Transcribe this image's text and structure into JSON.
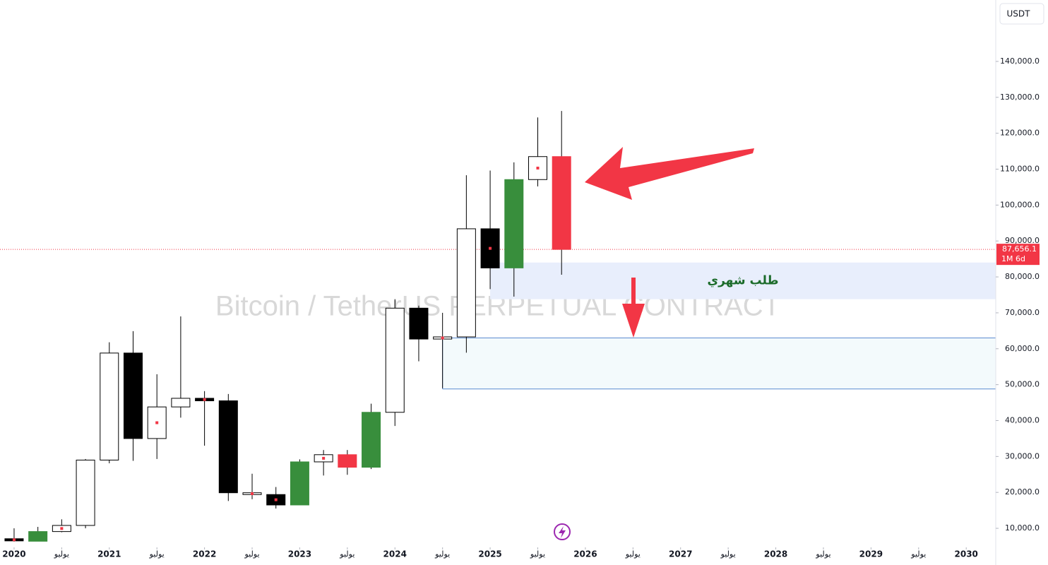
{
  "chart_data": {
    "type": "candlestick",
    "title": "Bitcoin / TetherUS PERPETUAL CONTRACT",
    "currency": "USDT",
    "x": [
      2020,
      2020.25,
      2020.5,
      2020.75,
      2021,
      2021.25,
      2021.5,
      2021.75,
      2022,
      2022.25,
      2022.5,
      2022.75,
      2023,
      2023.25,
      2023.5,
      2023.75,
      2024,
      2024.25,
      2024.5,
      2024.75,
      2025,
      2025.25,
      2025.5,
      2025.75
    ],
    "open": [
      6500,
      6400,
      9100,
      10800,
      29000,
      58800,
      35000,
      43800,
      46200,
      45500,
      19900,
      19400,
      16500,
      28500,
      30500,
      27000,
      42300,
      71300,
      62700,
      63300,
      93400,
      82500,
      107100,
      113500
    ],
    "high": [
      10000,
      10400,
      12500,
      29300,
      61800,
      64900,
      52900,
      69000,
      48200,
      47400,
      25200,
      21500,
      29200,
      31800,
      31800,
      44700,
      73800,
      72000,
      70000,
      108300,
      109600,
      111900,
      124400,
      126200
    ],
    "low": [
      6300,
      6400,
      8900,
      10000,
      28100,
      28800,
      29300,
      40800,
      33000,
      17600,
      18100,
      15500,
      16500,
      24700,
      24900,
      26500,
      38500,
      56500,
      49000,
      58900,
      76600,
      74500,
      105200,
      80600
    ],
    "close": [
      7100,
      9100,
      10800,
      29000,
      58800,
      35000,
      43800,
      46200,
      45500,
      19900,
      19400,
      16500,
      28500,
      30500,
      27000,
      42300,
      71300,
      62700,
      63300,
      93400,
      82500,
      107100,
      113500,
      87656.1
    ],
    "colors": [
      "#000000",
      "#388e3c",
      "#ffffff",
      "#ffffff",
      "#ffffff",
      "#000000",
      "#ffffff",
      "#ffffff",
      "#000000",
      "#000000",
      "#ffffff",
      "#000000",
      "#388e3c",
      "#ffffff",
      "#f23645",
      "#388e3c",
      "#ffffff",
      "#000000",
      "#ffffff",
      "#ffffff",
      "#000000",
      "#388e3c",
      "#ffffff",
      "#f23645"
    ],
    "dots": [
      true,
      false,
      true,
      false,
      false,
      false,
      true,
      false,
      true,
      false,
      true,
      true,
      false,
      true,
      false,
      false,
      false,
      false,
      true,
      false,
      true,
      false,
      true,
      false
    ],
    "xlim": [
      2019.852,
      2030.31
    ],
    "ylim": [
      4700,
      157100
    ],
    "xticks": [
      2020,
      {
        "value": 2020.5,
        "label": "يوليو"
      },
      2021,
      {
        "value": 2021.5,
        "label": "يوليو"
      },
      2022,
      {
        "value": 2022.5,
        "label": "يوليو"
      },
      2023,
      {
        "value": 2023.5,
        "label": "يوليو"
      },
      2024,
      {
        "value": 2024.5,
        "label": "يوليو"
      },
      2025,
      {
        "value": 2025.5,
        "label": "يوليو"
      },
      2026,
      {
        "value": 2026.5,
        "label": "يوليو"
      },
      2027,
      {
        "value": 2027.5,
        "label": "يوليو"
      },
      2028,
      {
        "value": 2028.5,
        "label": "يوليو"
      },
      2029,
      {
        "value": 2029.5,
        "label": "يوليو"
      },
      2030
    ],
    "yticks": [
      {
        "value": 10000,
        "label": "10,000.0"
      },
      {
        "value": 20000,
        "label": "20,000.0"
      },
      {
        "value": 30000,
        "label": "30,000.0"
      },
      {
        "value": 40000,
        "label": "40,000.0"
      },
      {
        "value": 50000,
        "label": "50,000.0"
      },
      {
        "value": 60000,
        "label": "60,000.0"
      },
      {
        "value": 70000,
        "label": "70,000.0"
      },
      {
        "value": 80000,
        "label": "80,000.0"
      },
      {
        "value": 90000,
        "label": "90,000.0"
      },
      {
        "value": 100000,
        "label": "100,000.0"
      },
      {
        "value": 110000,
        "label": "110,000.0"
      },
      {
        "value": 120000,
        "label": "120,000.0"
      },
      {
        "value": 130000,
        "label": "130,000.0"
      },
      {
        "value": 140000,
        "label": "140,000.0"
      }
    ],
    "last_price": {
      "value": 87656.1,
      "label": "87,656.1"
    },
    "countdown": "1M 6d",
    "zones": [
      {
        "label": "طلب شهري",
        "x_start": 2025,
        "ylim": [
          73800,
          84000
        ],
        "color": "#e8eefc"
      },
      {
        "x_start": 2024.5,
        "ylim": [
          48800,
          63000
        ],
        "color": "#f3fafc"
      }
    ]
  }
}
